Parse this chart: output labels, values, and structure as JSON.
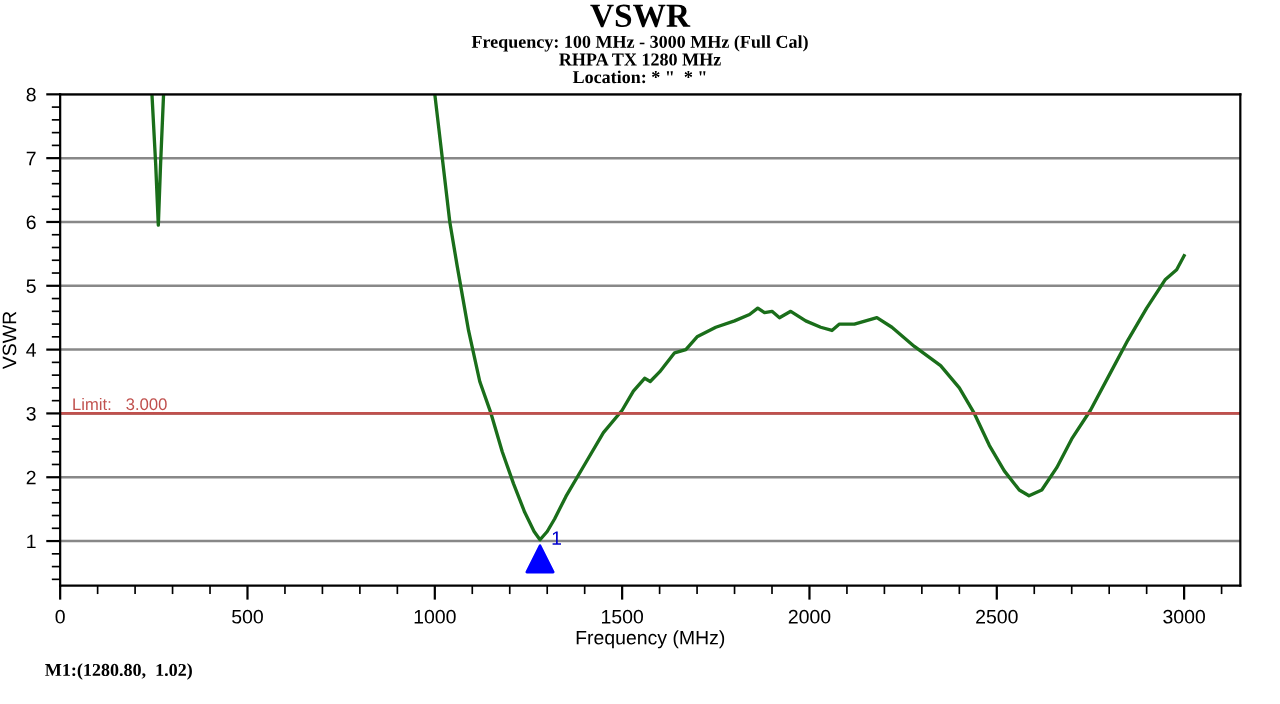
{
  "chart_data": {
    "type": "line",
    "title": "VSWR",
    "subtitle": "Frequency: 100 MHz - 3000 MHz (Full Cal)\nRHPA TX 1280 MHz\nLocation: * \"  * \"",
    "xlabel": "Frequency (MHz)",
    "ylabel": "VSWR",
    "series": [
      {
        "color": "#1a6e1a",
        "x": [
          245,
          255,
          262,
          268,
          276,
          null,
          1000,
          1020,
          1040,
          1060,
          1090,
          1120,
          1150,
          1180,
          1210,
          1240,
          1265,
          1280.8,
          1300,
          1320,
          1350,
          1400,
          1450,
          1500,
          1530,
          1560,
          1575,
          1600,
          1640,
          1670,
          1700,
          1750,
          1800,
          1840,
          1862,
          1880,
          1900,
          1920,
          1950,
          1990,
          2030,
          2060,
          2080,
          2120,
          2180,
          2220,
          2280,
          2350,
          2400,
          2440,
          2480,
          2520,
          2560,
          2586,
          2620,
          2660,
          2700,
          2750,
          2800,
          2850,
          2900,
          2950,
          2980,
          3000
        ],
        "values": [
          8,
          6.9,
          5.95,
          6.9,
          8,
          null,
          8,
          7,
          6,
          5.3,
          4.3,
          3.5,
          3.0,
          2.4,
          1.9,
          1.45,
          1.15,
          1.02,
          1.15,
          1.35,
          1.7,
          2.2,
          2.7,
          3.05,
          3.35,
          3.55,
          3.5,
          3.65,
          3.95,
          4.0,
          4.2,
          4.35,
          4.45,
          4.55,
          4.65,
          4.58,
          4.6,
          4.5,
          4.6,
          4.45,
          4.35,
          4.3,
          4.4,
          4.4,
          4.5,
          4.35,
          4.05,
          3.75,
          3.4,
          3.0,
          2.5,
          2.1,
          1.8,
          1.71,
          1.8,
          2.15,
          2.6,
          3.05,
          3.6,
          4.15,
          4.65,
          5.1,
          5.25,
          5.47
        ]
      }
    ],
    "xlim": [
      0,
      3150
    ],
    "xticks": [
      0,
      500,
      1000,
      1500,
      2000,
      2500,
      3000
    ],
    "ylim": [
      0.3,
      8
    ],
    "yticks": [
      1,
      2,
      3,
      4,
      5,
      6,
      7,
      8
    ],
    "grid": "y",
    "ref_lines": [
      {
        "axis": "y",
        "value": 3,
        "label": "Limit:   3.000",
        "color": "#c0504d"
      }
    ],
    "annotations": [
      {
        "text": "1",
        "x": 1280.8,
        "y": 1.02
      },
      "M1:(1280.80,  1.02)"
    ]
  }
}
